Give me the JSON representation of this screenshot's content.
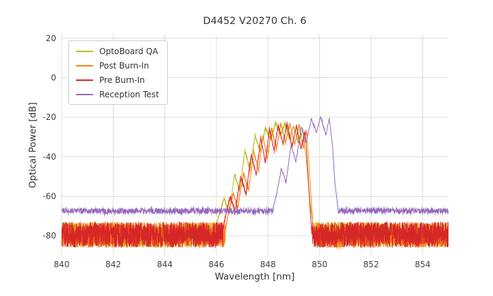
{
  "chart_data": {
    "type": "line",
    "title": "D4452 V20270 Ch. 6",
    "xlabel": "Wavelength [nm]",
    "ylabel": "Optical Power [dB]",
    "xlim": [
      840,
      855
    ],
    "ylim": [
      -90,
      22
    ],
    "x_ticks": [
      840,
      842,
      844,
      846,
      848,
      850,
      852,
      854
    ],
    "y_ticks": [
      20,
      0,
      -20,
      -40,
      -60,
      -80
    ],
    "grid": true,
    "grid_color": "#dcdcdc",
    "text_color": "#404040",
    "background": "#ffffff",
    "legend_position": "upper left",
    "series": [
      {
        "name": "OptoBoard QA",
        "color": "#bcbd22",
        "noise_floor_db": -79.5,
        "noise_amplitude_db": 13,
        "signal_range_nm": [
          845.95,
          849.78
        ],
        "signal_points": [
          [
            845.95,
            -76
          ],
          [
            846.1,
            -70
          ],
          [
            846.3,
            -61
          ],
          [
            846.5,
            -69
          ],
          [
            846.7,
            -49
          ],
          [
            846.9,
            -57
          ],
          [
            847.1,
            -37
          ],
          [
            847.3,
            -46
          ],
          [
            847.5,
            -29.5
          ],
          [
            847.7,
            -37
          ],
          [
            847.9,
            -25.5
          ],
          [
            848.1,
            -31
          ],
          [
            848.3,
            -22.8
          ],
          [
            848.48,
            -29
          ],
          [
            848.66,
            -23.2
          ],
          [
            848.84,
            -31
          ],
          [
            849.0,
            -24.5
          ],
          [
            849.18,
            -33
          ],
          [
            849.35,
            -26.5
          ],
          [
            849.5,
            -43
          ],
          [
            849.62,
            -62
          ],
          [
            849.78,
            -78
          ]
        ]
      },
      {
        "name": "Post Burn-In",
        "color": "#ff7f0e",
        "noise_floor_db": -79.5,
        "noise_amplitude_db": 13,
        "signal_range_nm": [
          846.35,
          849.76
        ],
        "signal_points": [
          [
            846.35,
            -77
          ],
          [
            846.5,
            -66
          ],
          [
            846.66,
            -58.5
          ],
          [
            846.82,
            -66
          ],
          [
            847.05,
            -48.5
          ],
          [
            847.25,
            -57
          ],
          [
            847.45,
            -37.5
          ],
          [
            847.64,
            -47
          ],
          [
            847.8,
            -29.5
          ],
          [
            847.98,
            -41
          ],
          [
            848.14,
            -25.5
          ],
          [
            848.33,
            -36
          ],
          [
            848.5,
            -23.2
          ],
          [
            848.68,
            -33
          ],
          [
            848.85,
            -22.8
          ],
          [
            849.03,
            -34
          ],
          [
            849.2,
            -24
          ],
          [
            849.37,
            -35.5
          ],
          [
            849.5,
            -26.8
          ],
          [
            849.6,
            -46
          ],
          [
            849.7,
            -66
          ],
          [
            849.76,
            -78
          ]
        ]
      },
      {
        "name": "Pre Burn-In",
        "color": "#d62728",
        "noise_floor_db": -79.5,
        "noise_amplitude_db": 13,
        "signal_range_nm": [
          846.25,
          849.7
        ],
        "signal_points": [
          [
            846.25,
            -77
          ],
          [
            846.4,
            -67
          ],
          [
            846.55,
            -60
          ],
          [
            846.72,
            -68
          ],
          [
            846.95,
            -50
          ],
          [
            847.15,
            -59
          ],
          [
            847.35,
            -39
          ],
          [
            847.55,
            -49
          ],
          [
            847.72,
            -30.5
          ],
          [
            847.9,
            -43
          ],
          [
            848.06,
            -26
          ],
          [
            848.24,
            -37
          ],
          [
            848.4,
            -23.8
          ],
          [
            848.58,
            -33.5
          ],
          [
            848.74,
            -23.2
          ],
          [
            848.93,
            -35
          ],
          [
            849.1,
            -24.2
          ],
          [
            849.28,
            -36
          ],
          [
            849.44,
            -27
          ],
          [
            849.55,
            -48
          ],
          [
            849.64,
            -68
          ],
          [
            849.7,
            -79
          ]
        ]
      },
      {
        "name": "Reception Test",
        "color": "#9467bd",
        "noise_floor_db": -67.4,
        "noise_amplitude_db": 2.8,
        "signal_range_nm": [
          848.2,
          850.72
        ],
        "signal_points": [
          [
            848.2,
            -66
          ],
          [
            848.35,
            -58
          ],
          [
            848.52,
            -46
          ],
          [
            848.7,
            -53
          ],
          [
            848.9,
            -33.5
          ],
          [
            849.08,
            -43
          ],
          [
            849.3,
            -24.5
          ],
          [
            849.48,
            -33
          ],
          [
            849.68,
            -20.8
          ],
          [
            849.88,
            -27.5
          ],
          [
            850.05,
            -19.6
          ],
          [
            850.24,
            -29
          ],
          [
            850.38,
            -20.8
          ],
          [
            850.5,
            -34
          ],
          [
            850.6,
            -54
          ],
          [
            850.72,
            -66.5
          ]
        ]
      }
    ]
  }
}
